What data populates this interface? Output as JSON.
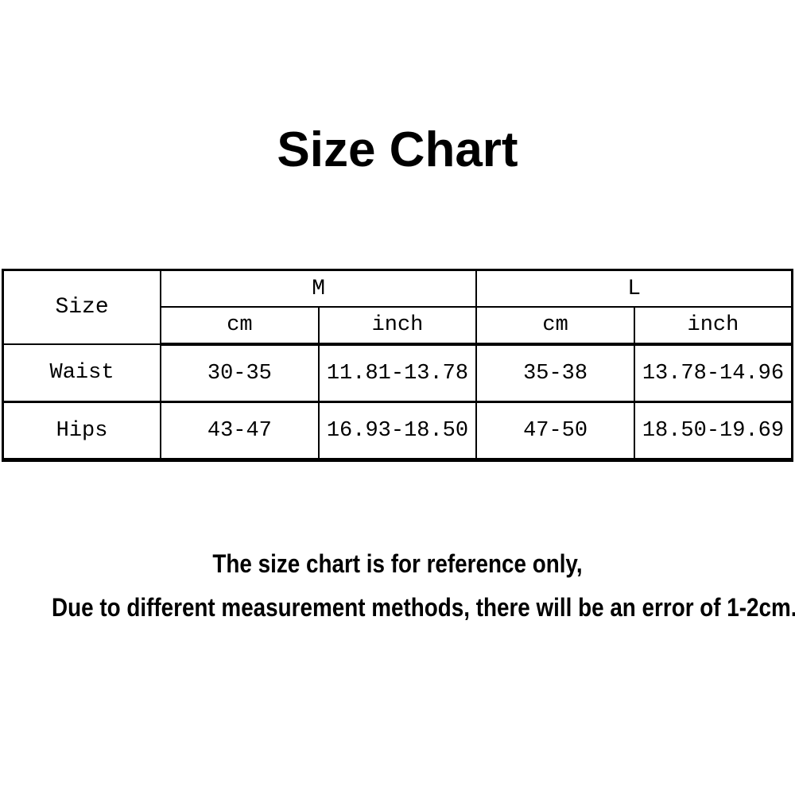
{
  "page": {
    "background": "#ffffff"
  },
  "title": "Size Chart",
  "chart_data": {
    "type": "table",
    "title": "Size Chart",
    "corner_header": "Size",
    "size_columns": [
      "M",
      "L"
    ],
    "unit_subheaders": [
      "cm",
      "inch",
      "cm",
      "inch"
    ],
    "row_labels": [
      "Waist",
      "Hips"
    ],
    "rows": [
      {
        "label": "Waist",
        "m_cm": "30-35",
        "m_inch": "11.81-13.78",
        "l_cm": "35-38",
        "l_inch": "13.78-14.96"
      },
      {
        "label": "Hips",
        "m_cm": "43-47",
        "m_inch": "16.93-18.50",
        "l_cm": "47-50",
        "l_inch": "18.50-19.69"
      }
    ]
  },
  "footer": {
    "line1": "The size chart is for reference only,",
    "line2": "Due to different measurement methods, there will be an error of 1-2cm."
  },
  "colors": {
    "background": "#ffffff",
    "text": "#000000",
    "table_border": "#000000"
  }
}
